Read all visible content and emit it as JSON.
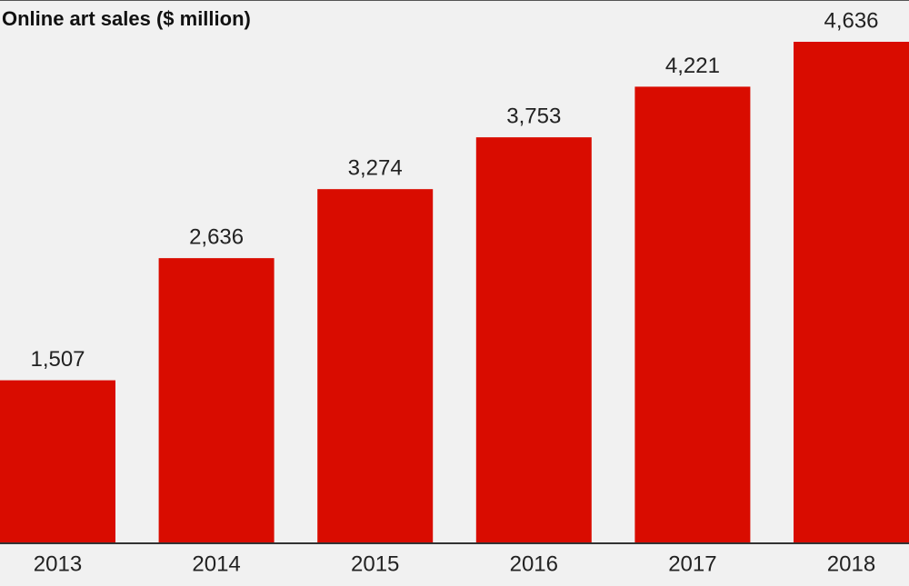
{
  "chart_data": {
    "type": "bar",
    "title": "Online art sales ($ million)",
    "categories": [
      "2013",
      "2014",
      "2015",
      "2016",
      "2017",
      "2018"
    ],
    "values": [
      1507,
      2636,
      3274,
      3753,
      4221,
      4636
    ],
    "value_labels": [
      "1,507",
      "2,636",
      "3,274",
      "3,753",
      "4,221",
      "4,636"
    ],
    "color": "#d90c00"
  }
}
